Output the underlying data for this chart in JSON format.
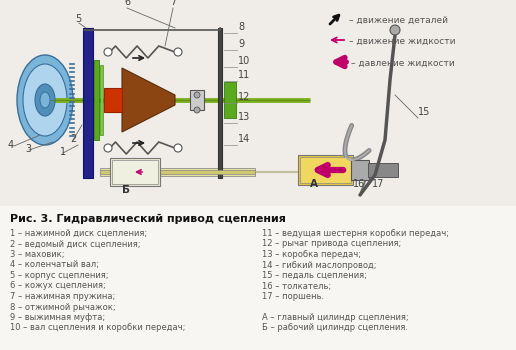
{
  "title": "Рис. 3. Гидравлический привод сцепления",
  "legend_items": [
    {
      "label": "– движение деталей",
      "color": "#111111",
      "type": "diag_arrow"
    },
    {
      "label": "– движение жидкости",
      "color": "#c0006a",
      "type": "thin_arrow"
    },
    {
      "label": "– давление жидкости",
      "color": "#c0006a",
      "type": "thick_arrow"
    }
  ],
  "left_labels": [
    "1 – нажимной диск сцепления;",
    "2 – ведомый диск сцепления;",
    "3 – маховик;",
    "4 – коленчатый вал;",
    "5 – корпус сцепления;",
    "6 – кожух сцепления;",
    "7 – нажимная пружина;",
    "8 – отжимной рычажок;",
    "9 – выжимная муфта;",
    "10 – вал сцепления и коробки передач;"
  ],
  "right_labels": [
    "11 – ведущая шестерня коробки передач;",
    "12 – рычаг привода сцепления;",
    "13 – коробка передач;",
    "14 – гибкий маслопровод;",
    "15 – педаль сцепления;",
    "16 – толкатель;",
    "17 – поршень.",
    "",
    "А – главный цилиндр сцепления;",
    "Б – рабочий цилиндр сцепления."
  ],
  "bg": "#f0ede8",
  "diagram_bg": "#f8f6f2",
  "text_color": "#555555",
  "title_color": "#111111"
}
